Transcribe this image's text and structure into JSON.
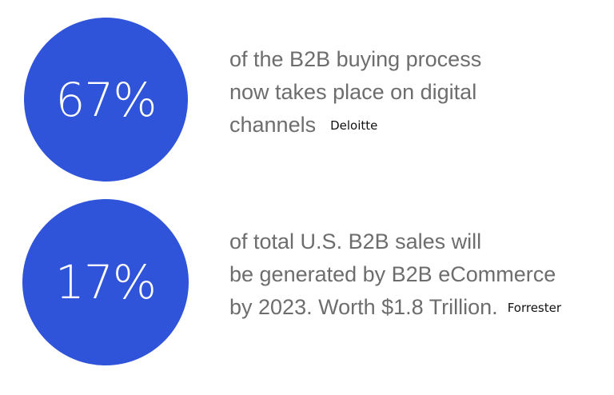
{
  "stats": [
    {
      "value": "67%",
      "lines": [
        "of the B2B buying process",
        "now takes place on digital",
        "channels"
      ],
      "source": "Deloitte"
    },
    {
      "value": "17%",
      "lines": [
        "of total U.S. B2B sales will",
        "be generated by B2B eCommerce",
        "by 2023. Worth $1.8 Trillion."
      ],
      "source": "Forrester"
    }
  ],
  "colors": {
    "circle": "#2f54d9",
    "circle_text": "#ffffff",
    "body_text": "#6d6d6d",
    "source_text": "#111111"
  }
}
